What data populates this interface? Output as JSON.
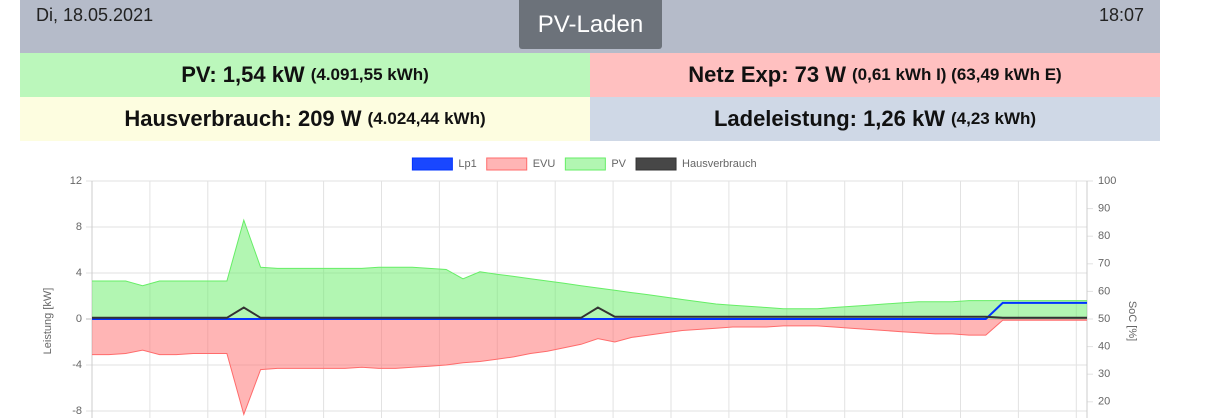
{
  "header": {
    "date": "Di, 18.05.2021",
    "title": "PV-Laden",
    "time": "18:07"
  },
  "info": {
    "pv": {
      "main": "PV: 1,54 kW",
      "detail": "(4.091,55 kWh)"
    },
    "grid": {
      "main": "Netz Exp: 73 W",
      "detail": "(0,61 kWh I) (63,49 kWh E)"
    },
    "house": {
      "main": "Hausverbrauch: 209 W",
      "detail": "(4.024,44 kWh)"
    },
    "charge": {
      "main": "Ladeleistung: 1,26 kW",
      "detail": "(4,23 kWh)"
    }
  },
  "chart_data": {
    "type": "line",
    "y_label": "Leistung [kW]",
    "y2_label": "SoC [%]",
    "ylim": [
      -12,
      12
    ],
    "yticks": [
      12,
      8,
      4,
      0,
      -4,
      -8
    ],
    "y2lim": [
      0,
      100
    ],
    "y2ticks": [
      100,
      90,
      80,
      70,
      60,
      50,
      40,
      30,
      20
    ],
    "grid": true,
    "legend": "top",
    "series": [
      {
        "name": "Lp1",
        "color": "#0033ff",
        "fill": false,
        "values": [
          0,
          0,
          0,
          0,
          0,
          0,
          0,
          0,
          0,
          0,
          0,
          0,
          0,
          0,
          0,
          0,
          0,
          0,
          0,
          0,
          0,
          0,
          0,
          0,
          0,
          0,
          0,
          0,
          0,
          0,
          0,
          0,
          0,
          0,
          0,
          0,
          0,
          0,
          0,
          0,
          0,
          0,
          0,
          0,
          0,
          0,
          0,
          0,
          0,
          0,
          0,
          0,
          0,
          0,
          1.4,
          1.4,
          1.4,
          1.4,
          1.4,
          1.4
        ]
      },
      {
        "name": "EVU",
        "color": "#ff6b6b",
        "fill": true,
        "values": [
          -3.1,
          -3.1,
          -3.0,
          -2.7,
          -3.1,
          -3.1,
          -3.0,
          -3.0,
          -3.0,
          -8.3,
          -4.4,
          -4.3,
          -4.3,
          -4.3,
          -4.3,
          -4.3,
          -4.2,
          -4.3,
          -4.3,
          -4.2,
          -4.1,
          -4.0,
          -3.8,
          -3.7,
          -3.5,
          -3.3,
          -3.0,
          -2.8,
          -2.5,
          -2.2,
          -1.7,
          -2.0,
          -1.6,
          -1.4,
          -1.2,
          -1.0,
          -0.9,
          -0.8,
          -0.7,
          -0.7,
          -0.7,
          -0.6,
          -0.6,
          -0.6,
          -0.7,
          -0.8,
          -0.9,
          -1.0,
          -1.1,
          -1.2,
          -1.3,
          -1.3,
          -1.4,
          -1.4,
          -0.1,
          -0.1,
          -0.1,
          -0.1,
          -0.1,
          -0.1
        ]
      },
      {
        "name": "PV",
        "color": "#66ee66",
        "fill": true,
        "values": [
          3.3,
          3.3,
          3.3,
          2.9,
          3.3,
          3.3,
          3.3,
          3.3,
          3.3,
          8.6,
          4.5,
          4.4,
          4.4,
          4.4,
          4.4,
          4.4,
          4.4,
          4.5,
          4.5,
          4.5,
          4.4,
          4.3,
          3.5,
          4.1,
          3.9,
          3.7,
          3.5,
          3.3,
          3.1,
          2.9,
          2.7,
          2.5,
          2.3,
          2.1,
          1.9,
          1.7,
          1.5,
          1.3,
          1.2,
          1.1,
          1.0,
          0.9,
          0.9,
          0.9,
          1.0,
          1.1,
          1.2,
          1.3,
          1.4,
          1.5,
          1.5,
          1.5,
          1.6,
          1.6,
          1.6,
          1.6,
          1.6,
          1.6,
          1.6,
          1.6
        ]
      },
      {
        "name": "Hausverbrauch",
        "color": "#333333",
        "fill": false,
        "values": [
          0.1,
          0.1,
          0.1,
          0.1,
          0.1,
          0.1,
          0.1,
          0.1,
          0.1,
          1.0,
          0.1,
          0.1,
          0.1,
          0.1,
          0.1,
          0.1,
          0.1,
          0.1,
          0.1,
          0.1,
          0.1,
          0.1,
          0.1,
          0.1,
          0.1,
          0.1,
          0.1,
          0.1,
          0.1,
          0.1,
          1.0,
          0.2,
          0.2,
          0.2,
          0.2,
          0.2,
          0.2,
          0.2,
          0.2,
          0.2,
          0.2,
          0.2,
          0.2,
          0.2,
          0.2,
          0.2,
          0.2,
          0.2,
          0.2,
          0.2,
          0.2,
          0.2,
          0.2,
          0.2,
          0.1,
          0.1,
          0.1,
          0.1,
          0.1,
          0.1
        ]
      }
    ]
  }
}
